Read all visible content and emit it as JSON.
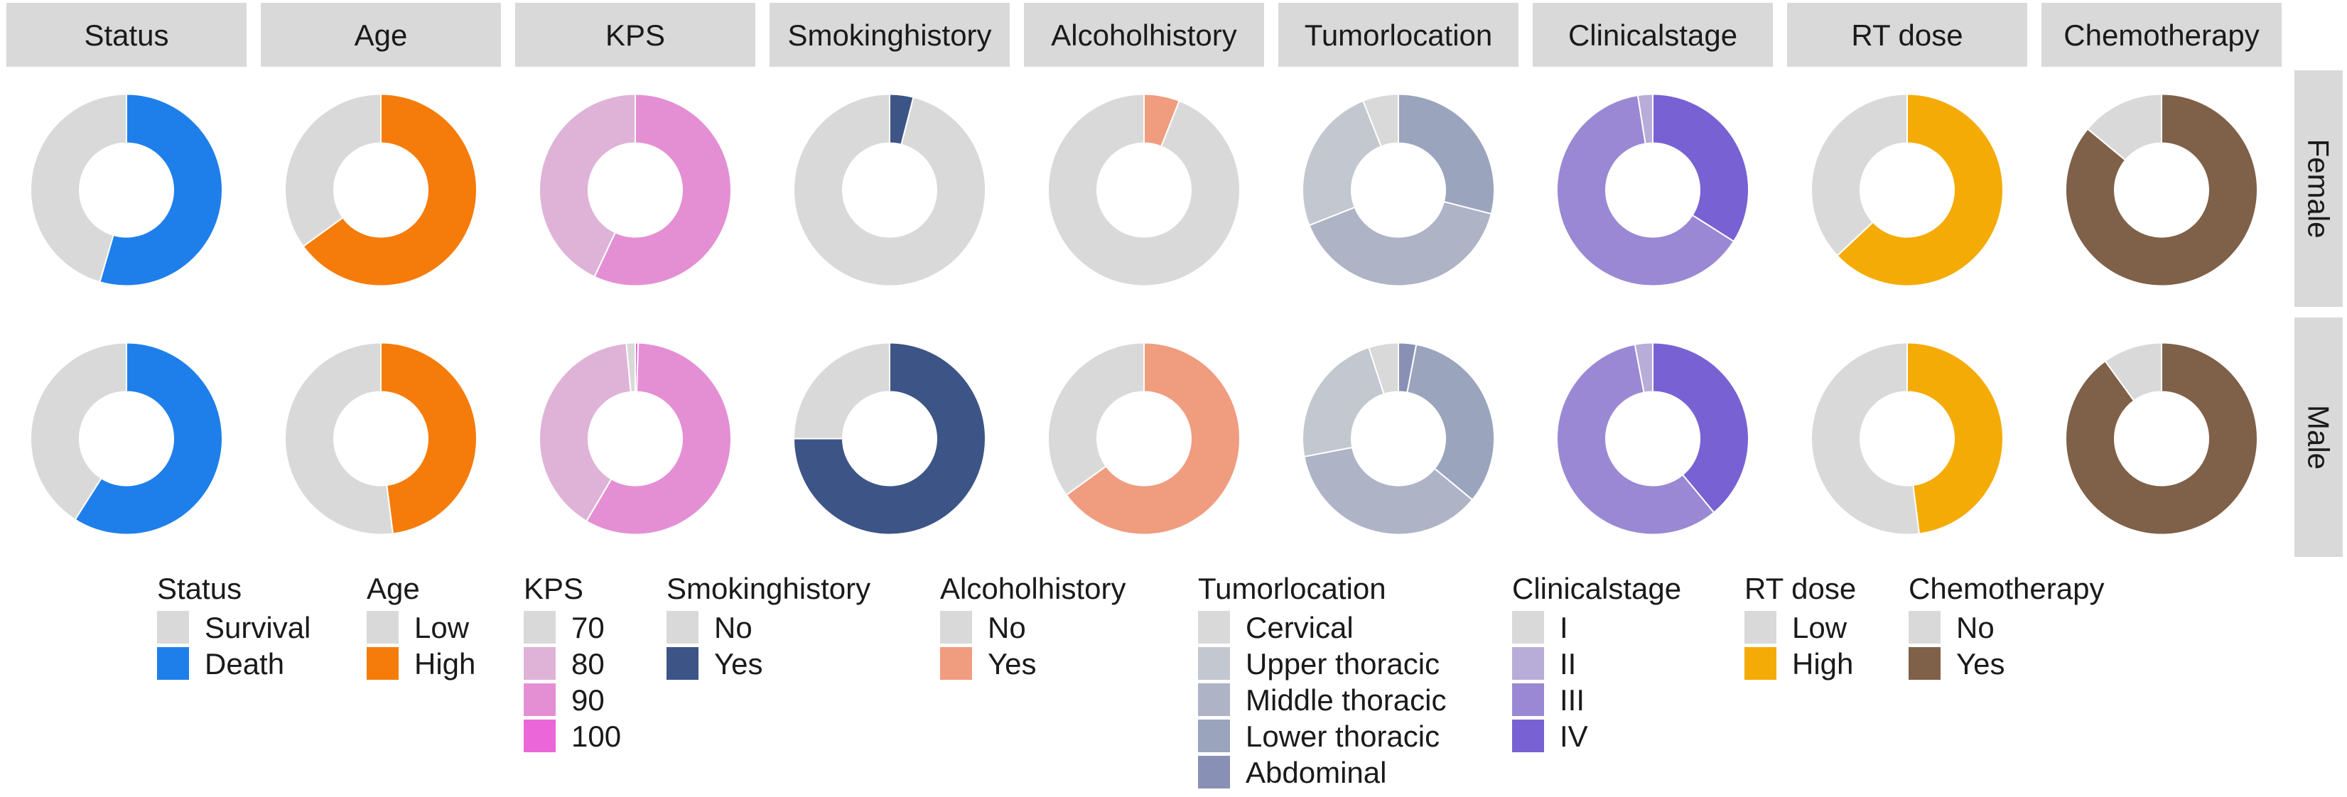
{
  "chart_data": {
    "type": "pie",
    "subtype": "donut",
    "row_facets": [
      "Female",
      "Male"
    ],
    "value_unit": "proportion",
    "variables": [
      {
        "name": "Status",
        "levels": [
          "Survival",
          "Death"
        ],
        "colors": [
          "#d9d9d9",
          "#1f7fea"
        ],
        "values": {
          "Female": [
            0.455,
            0.545
          ],
          "Male": [
            0.41,
            0.59
          ]
        }
      },
      {
        "name": "Age",
        "levels": [
          "Low",
          "High"
        ],
        "colors": [
          "#d9d9d9",
          "#f57c0a"
        ],
        "values": {
          "Female": [
            0.35,
            0.65
          ],
          "Male": [
            0.52,
            0.48
          ]
        }
      },
      {
        "name": "KPS",
        "levels": [
          "70",
          "80",
          "90",
          "100"
        ],
        "colors": [
          "#d9d9d9",
          "#dfb3d7",
          "#e48fd4",
          "#eb66d8"
        ],
        "values": {
          "Female": [
            0.0,
            0.43,
            0.57,
            0.0
          ],
          "Male": [
            0.015,
            0.4,
            0.58,
            0.005
          ]
        }
      },
      {
        "name": "Smokinghistory",
        "levels": [
          "No",
          "Yes"
        ],
        "colors": [
          "#d9d9d9",
          "#3d5487"
        ],
        "values": {
          "Female": [
            0.96,
            0.04
          ],
          "Male": [
            0.25,
            0.75
          ]
        }
      },
      {
        "name": "Alcoholhistory",
        "levels": [
          "No",
          "Yes"
        ],
        "colors": [
          "#d9d9d9",
          "#f09c7f"
        ],
        "values": {
          "Female": [
            0.94,
            0.06
          ],
          "Male": [
            0.35,
            0.65
          ]
        }
      },
      {
        "name": "Tumorlocation",
        "levels": [
          "Cervical",
          "Upper thoracic",
          "Middle thoracic",
          "Lower thoracic",
          "Abdominal"
        ],
        "colors": [
          "#d9d9d9",
          "#c3c7d0",
          "#aeb3c6",
          "#9aa4bd",
          "#8891b5"
        ],
        "values": {
          "Female": [
            0.06,
            0.25,
            0.4,
            0.29,
            0.0
          ],
          "Male": [
            0.05,
            0.23,
            0.36,
            0.33,
            0.03
          ]
        }
      },
      {
        "name": "Clinicalstage",
        "levels": [
          "I",
          "II",
          "III",
          "IV"
        ],
        "colors": [
          "#d9d9d9",
          "#b8acd8",
          "#9a88d4",
          "#7861d3"
        ],
        "values": {
          "Female": [
            0.0,
            0.025,
            0.635,
            0.34
          ],
          "Male": [
            0.0,
            0.03,
            0.58,
            0.39
          ]
        }
      },
      {
        "name": "RT dose",
        "levels": [
          "Low",
          "High"
        ],
        "colors": [
          "#d9d9d9",
          "#f4ab06"
        ],
        "values": {
          "Female": [
            0.37,
            0.63
          ],
          "Male": [
            0.52,
            0.48
          ]
        }
      },
      {
        "name": "Chemotherapy",
        "levels": [
          "No",
          "Yes"
        ],
        "colors": [
          "#d9d9d9",
          "#7f6048"
        ],
        "values": {
          "Female": [
            0.14,
            0.86
          ],
          "Male": [
            0.1,
            0.9
          ]
        }
      }
    ],
    "strip_color": "#d9d9d9",
    "legend_position": "bottom"
  }
}
